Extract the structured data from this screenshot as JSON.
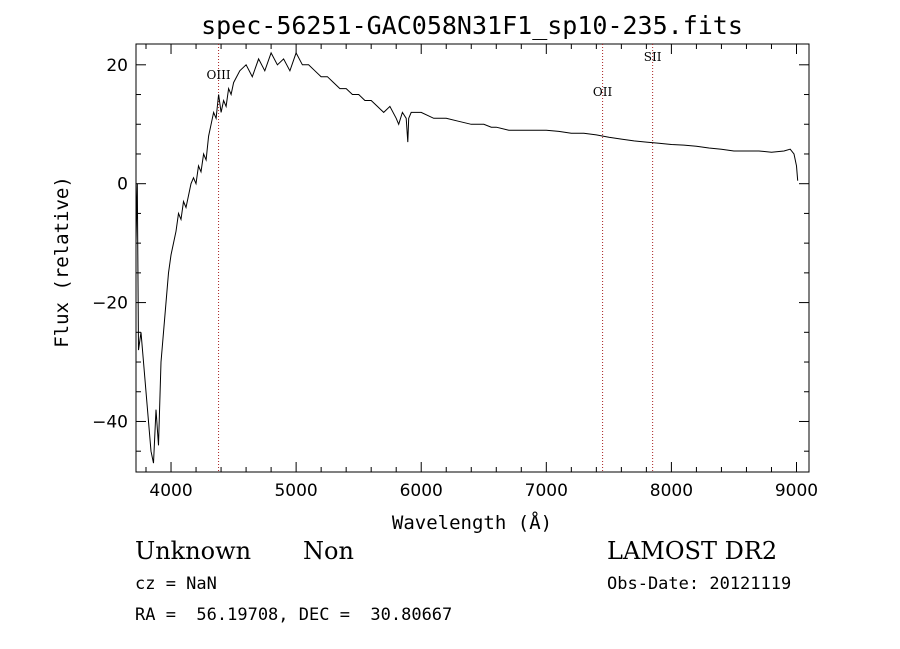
{
  "chart_data": {
    "type": "line",
    "title": "spec-56251-GAC058N31F1_sp10-235.fits",
    "xlabel": "Wavelength (Å)",
    "ylabel": "Flux (relative)",
    "xlim": [
      3720,
      9100
    ],
    "ylim": [
      -48.5,
      23.5
    ],
    "x_ticks": [
      4000,
      5000,
      6000,
      7000,
      8000,
      9000
    ],
    "y_ticks": [
      -40,
      -20,
      0,
      20
    ],
    "x_tick_labels": [
      "4000",
      "5000",
      "6000",
      "7000",
      "8000",
      "9000"
    ],
    "y_tick_labels": [
      "−40",
      "−20",
      "0",
      "20"
    ],
    "grid": false,
    "line_color": "#000000",
    "marker_color": "#aa2222",
    "series": [
      {
        "x": [
          3720,
          3730,
          3740,
          3760,
          3780,
          3800,
          3820,
          3840,
          3860,
          3880,
          3900,
          3920,
          3940,
          3960,
          3980,
          4000,
          4020,
          4040,
          4060,
          4080,
          4100,
          4120,
          4140,
          4160,
          4180,
          4200,
          4220,
          4240,
          4260,
          4280,
          4300,
          4320,
          4340,
          4360,
          4380,
          4400,
          4420,
          4440,
          4460,
          4480,
          4500,
          4550,
          4600,
          4650,
          4700,
          4750,
          4800,
          4850,
          4900,
          4950,
          5000,
          5050,
          5100,
          5150,
          5200,
          5250,
          5300,
          5350,
          5400,
          5450,
          5500,
          5550,
          5600,
          5650,
          5700,
          5750,
          5800,
          5820,
          5850,
          5880,
          5893,
          5900,
          5920,
          5950,
          6000,
          6100,
          6200,
          6300,
          6400,
          6500,
          6560,
          6600,
          6700,
          6800,
          6900,
          7000,
          7100,
          7200,
          7300,
          7400,
          7500,
          7600,
          7700,
          7800,
          7900,
          8000,
          8100,
          8200,
          8300,
          8400,
          8500,
          8600,
          8700,
          8800,
          8900,
          8950,
          8980,
          9000,
          9010
        ],
        "y": [
          -10,
          0,
          -28,
          -25,
          -30,
          -35,
          -40,
          -45,
          -47,
          -38,
          -44,
          -30,
          -25,
          -20,
          -15,
          -12,
          -10,
          -8,
          -5,
          -6,
          -3,
          -4,
          -2,
          0,
          1,
          0,
          3,
          2,
          5,
          4,
          8,
          10,
          12,
          11,
          15,
          12,
          14,
          13,
          16,
          15,
          17,
          19,
          20,
          18,
          21,
          19,
          22,
          20,
          21,
          19,
          22,
          20,
          20,
          19,
          18,
          18,
          17,
          16,
          16,
          15,
          15,
          14,
          14,
          13,
          12,
          13,
          11,
          10,
          12,
          11,
          7,
          11,
          12,
          12,
          12,
          11,
          11,
          10.5,
          10,
          10,
          9.5,
          9.5,
          9,
          9,
          9,
          9,
          8.8,
          8.5,
          8.5,
          8.2,
          7.8,
          7.5,
          7.2,
          7.0,
          6.8,
          6.6,
          6.5,
          6.3,
          6.0,
          5.8,
          5.5,
          5.5,
          5.5,
          5.3,
          5.5,
          5.8,
          5.0,
          3.0,
          0.5
        ]
      }
    ],
    "markers": [
      {
        "label": "OIII",
        "x": 4380
      },
      {
        "label": "OII",
        "x": 7450
      },
      {
        "label": "SII",
        "x": 7850
      }
    ]
  },
  "footer": {
    "class_label": "Unknown",
    "subclass_label": "Non",
    "survey_label": "LAMOST DR2",
    "cz_text": "cz = NaN",
    "obs_date_text": "Obs-Date: 20121119",
    "radec_text": "RA =  56.19708, DEC =  30.80667"
  }
}
